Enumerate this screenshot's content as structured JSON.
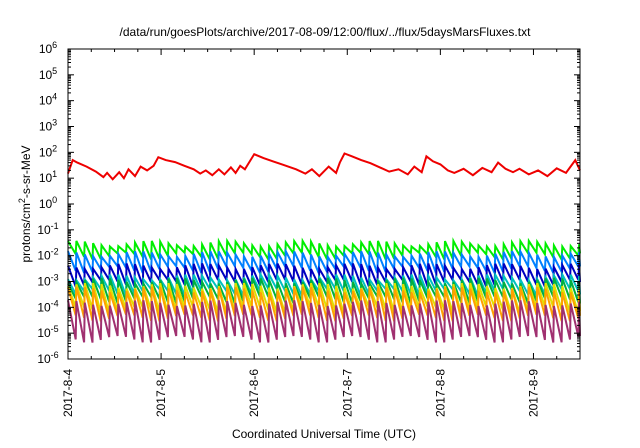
{
  "chart_data": {
    "type": "line",
    "title": "/data/run/goesPlots/archive/2017-08-09/12:00/flux/../flux/5daysMarsFluxes.txt",
    "xlabel": "Coordinated Universal Time (UTC)",
    "ylabel_main": "protons/cm",
    "ylabel_sup": "2",
    "ylabel_rest": "-s-sr-MeV",
    "yscale": "log",
    "ylim_exp": [
      -6,
      6
    ],
    "xlim_days": [
      0,
      5.5
    ],
    "x_ticks": [
      "2017-8-4",
      "2017-8-5",
      "2017-8-6",
      "2017-8-7",
      "2017-8-8",
      "2017-8-9"
    ],
    "y_ticks": [
      {
        "exp": -6,
        "label": "10",
        "sup": "-6"
      },
      {
        "exp": -5,
        "label": "10",
        "sup": "-5"
      },
      {
        "exp": -4,
        "label": "10",
        "sup": "-4"
      },
      {
        "exp": -3,
        "label": "10",
        "sup": "-3"
      },
      {
        "exp": -2,
        "label": "10",
        "sup": "-2"
      },
      {
        "exp": -1,
        "label": "10",
        "sup": "-1"
      },
      {
        "exp": 0,
        "label": "10",
        "sup": "0"
      },
      {
        "exp": 1,
        "label": "10",
        "sup": "1"
      },
      {
        "exp": 2,
        "label": "10",
        "sup": "2"
      },
      {
        "exp": 3,
        "label": "10",
        "sup": "3"
      },
      {
        "exp": 4,
        "label": "10",
        "sup": "4"
      },
      {
        "exp": 5,
        "label": "10",
        "sup": "5"
      },
      {
        "exp": 6,
        "label": "10",
        "sup": "6"
      }
    ],
    "grid": false,
    "legend": "none",
    "series": [
      {
        "color": "#ee0000",
        "kind": "peaks",
        "x": [
          0,
          0.05,
          0.1,
          0.2,
          0.3,
          0.38,
          0.42,
          0.48,
          0.55,
          0.6,
          0.65,
          0.72,
          0.78,
          0.85,
          0.92,
          0.97,
          1.05,
          1.15,
          1.25,
          1.35,
          1.42,
          1.48,
          1.55,
          1.62,
          1.68,
          1.75,
          1.8,
          1.85,
          1.9,
          2.0,
          2.1,
          2.2,
          2.3,
          2.45,
          2.55,
          2.62,
          2.7,
          2.8,
          2.88,
          2.92,
          2.97,
          3.05,
          3.15,
          3.25,
          3.35,
          3.45,
          3.55,
          3.65,
          3.72,
          3.8,
          3.85,
          3.92,
          4.0,
          4.08,
          4.15,
          4.25,
          4.35,
          4.45,
          4.55,
          4.62,
          4.7,
          4.78,
          4.85,
          4.95,
          5.05,
          5.15,
          5.25,
          5.35,
          5.45,
          5.5
        ],
        "y": [
          15,
          50,
          40,
          28,
          18,
          11,
          16,
          9,
          17,
          10,
          22,
          12,
          28,
          20,
          30,
          65,
          50,
          42,
          30,
          22,
          15,
          20,
          13,
          22,
          14,
          26,
          16,
          30,
          22,
          85,
          60,
          45,
          34,
          22,
          15,
          22,
          12,
          28,
          16,
          40,
          90,
          70,
          50,
          38,
          26,
          18,
          22,
          14,
          28,
          17,
          70,
          45,
          34,
          20,
          16,
          23,
          13,
          25,
          17,
          40,
          23,
          17,
          23,
          14,
          20,
          12,
          24,
          16,
          50,
          20
        ]
      },
      {
        "color": "#00ee00",
        "kind": "saw",
        "top": 0.03,
        "bottom": 0.01
      },
      {
        "color": "#0080ff",
        "kind": "saw",
        "top": 0.012,
        "bottom": 0.003
      },
      {
        "color": "#0000c0",
        "kind": "saw",
        "top": 0.004,
        "bottom": 0.0009
      },
      {
        "color": "#00c0c0",
        "kind": "saw",
        "top": 0.0015,
        "bottom": 0.0004
      },
      {
        "color": "#00b040",
        "kind": "saw",
        "top": 0.0011,
        "bottom": 0.0002
      },
      {
        "color": "#e0e000",
        "kind": "saw",
        "top": 0.0007,
        "bottom": 8e-05
      },
      {
        "color": "#ffa000",
        "kind": "saw",
        "top": 0.0005,
        "bottom": 4e-05
      },
      {
        "color": "#a03070",
        "kind": "saw",
        "top": 0.00015,
        "bottom": 6e-06
      }
    ]
  }
}
